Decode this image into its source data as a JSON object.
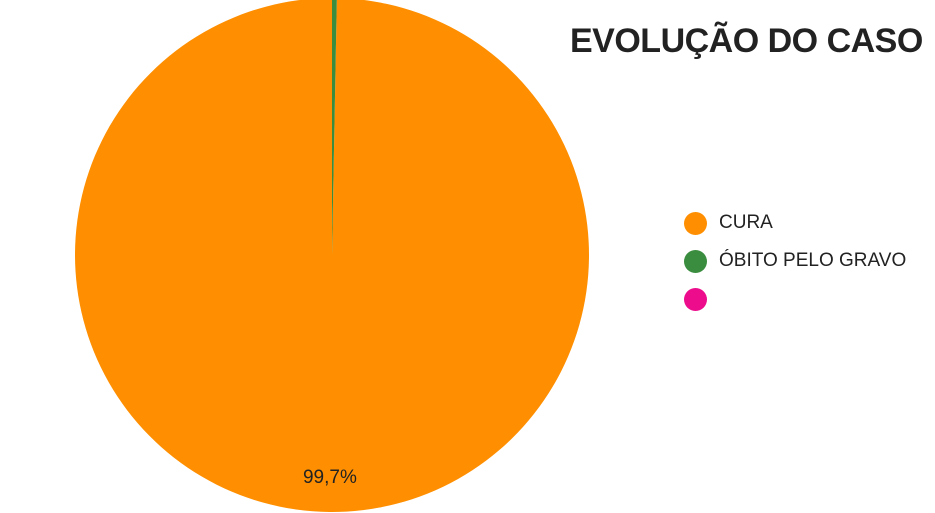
{
  "chart_data": {
    "type": "pie",
    "title": "EVOLUÇÃO DO CASO",
    "categories": [
      "CURA",
      "ÓBITO PELO GRAVO",
      ""
    ],
    "values": [
      99.7,
      0.3,
      0.0
    ],
    "colors": [
      "#ff8f00",
      "#3a8d3e",
      "#ec0c8c"
    ],
    "data_labels": [
      "99,7%",
      "",
      ""
    ],
    "legend_position": "right"
  }
}
